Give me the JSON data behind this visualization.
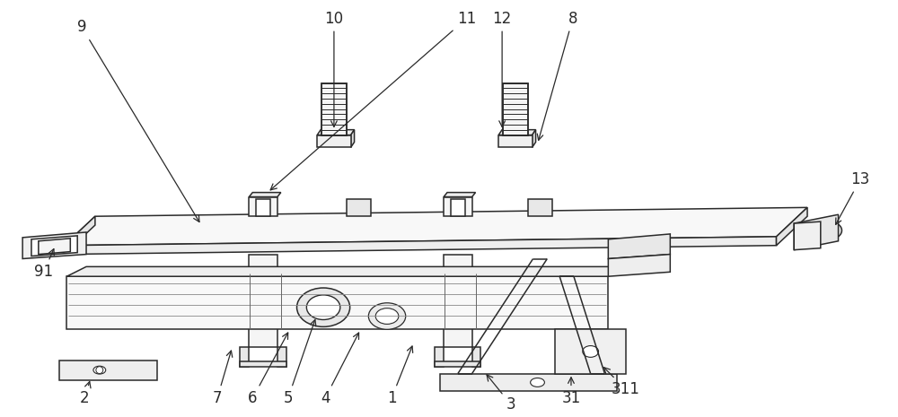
{
  "bg_color": "#ffffff",
  "lc": "#2a2a2a",
  "lw": 1.1,
  "fs": 12,
  "figsize": [
    10.0,
    4.65
  ]
}
